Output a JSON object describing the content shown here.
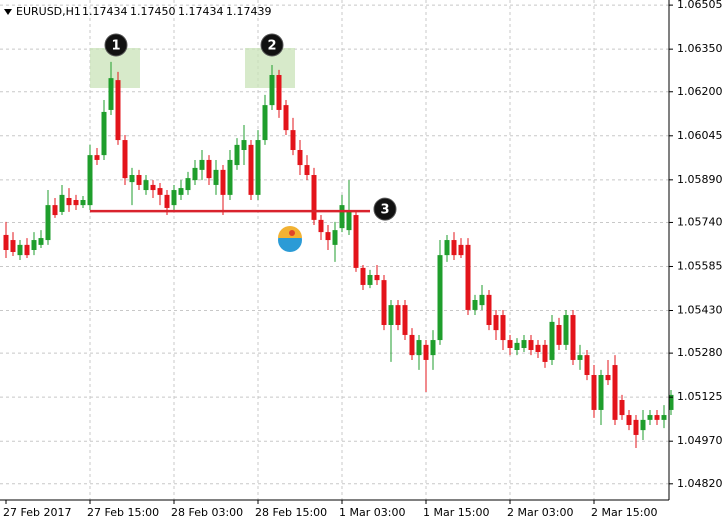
{
  "chart_data": {
    "type": "candlestick",
    "symbol": "EURUSD,H1",
    "quote": [
      1.17434,
      {
        "value": 1.1745,
        "label": "1.17450"
      },
      1.17434,
      1.17439
    ],
    "annotations": [
      "1",
      "2",
      "3"
    ],
    "level": 1.0578,
    "up_color": "#1f9e2c",
    "down_color": "#e3141b",
    "level_color": "#d9232d",
    "grid": true,
    "ylim": [
      1.04763,
      1.06523
    ],
    "yticks": [
      1.06505,
      {
        "value": 1.0635,
        "label": "1.06350"
      },
      {
        "value": 1.062,
        "label": "1.06200"
      },
      1.06045,
      {
        "value": 1.0589,
        "label": "1.05890"
      },
      {
        "value": 1.0574,
        "label": "1.05740"
      },
      1.05585,
      {
        "value": 1.0543,
        "label": "1.05430"
      },
      {
        "value": 1.0528,
        "label": "1.05280"
      },
      1.05125,
      {
        "value": 1.0497,
        "label": "1.04970"
      },
      {
        "value": 1.0482,
        "label": "1.04820"
      }
    ],
    "categories": [
      "27 Feb 2017",
      null,
      null,
      null,
      null,
      null,
      null,
      null,
      null,
      null,
      null,
      null,
      "27 Feb 15:00",
      null,
      null,
      null,
      null,
      null,
      null,
      null,
      null,
      null,
      null,
      null,
      "28 Feb 03:00",
      null,
      null,
      null,
      null,
      null,
      null,
      null,
      null,
      null,
      null,
      null,
      "28 Feb 15:00",
      null,
      null,
      null,
      null,
      null,
      null,
      null,
      null,
      null,
      null,
      null,
      "1 Mar 03:00",
      null,
      null,
      null,
      null,
      null,
      null,
      null,
      null,
      null,
      null,
      null,
      "1 Mar 15:00",
      null,
      null,
      null,
      null,
      null,
      null,
      null,
      null,
      null,
      null,
      null,
      "2 Mar 03:00",
      null,
      null,
      null,
      null,
      null,
      null,
      null,
      null,
      null,
      null,
      null,
      "2 Mar 15:00",
      null,
      null,
      null,
      null,
      null,
      null,
      null,
      null,
      null,
      null,
      null
    ],
    "open": [
      1.05696,
      1.05678,
      1.05625,
      1.05661,
      1.05643,
      1.05661,
      1.05678,
      1.05801,
      1.05777,
      1.05826,
      1.05819,
      1.05801,
      1.05801,
      1.05977,
      1.05977,
      1.06136,
      1.06241,
      1.0603,
      1.05882,
      1.05907,
      1.05854,
      1.05872,
      1.05861,
      1.05837,
      1.05801,
      1.05837,
      1.05854,
      1.05889,
      1.05925,
      1.0596,
      1.05872,
      1.05925,
      1.05837,
      1.05942,
      1.05995,
      1.06013,
      1.05837,
      1.0603,
      1.06153,
      1.06259,
      1.06153,
      1.06065,
      1.05995,
      1.05942,
      1.05907,
      1.05749,
      1.05706,
      1.05661,
      1.0572,
      1.05713,
      1.05766,
      1.0558,
      1.0552,
      1.05555,
      1.05537,
      1.05379,
      1.05449,
      1.05449,
      1.05344,
      1.05273,
      1.05309,
      1.05273,
      1.05326,
      1.05625,
      1.05678,
      1.05661,
      1.05661,
      1.05432,
      1.05449,
      1.05485,
      1.05414,
      1.05414,
      1.05326,
      1.05291,
      1.05298,
      1.05326,
      1.05309,
      1.05309,
      1.05256,
      1.05379,
      1.05309,
      1.05414,
      1.05256,
      1.05273,
      1.05203,
      1.0508,
      1.05203,
      1.05238,
      1.05115,
      1.05062,
      1.05045,
      1.05009,
      1.05045,
      1.05062,
      1.05045,
      1.0508
    ],
    "high": [
      1.05742,
      1.05706,
      1.05678,
      1.05685,
      1.05706,
      1.05713,
      1.05854,
      1.05826,
      1.05872,
      1.05861,
      1.05837,
      1.05833,
      1.06013,
      1.06002,
      1.06171,
      1.06305,
      1.0627,
      1.06048,
      1.05932,
      1.05925,
      1.05907,
      1.05889,
      1.05879,
      1.05854,
      1.05872,
      1.05889,
      1.05918,
      1.0596,
      1.05995,
      1.05977,
      1.0596,
      1.05942,
      1.05995,
      1.06037,
      1.06083,
      1.0603,
      1.06065,
      1.06189,
      1.06294,
      1.06277,
      1.06171,
      1.06108,
      1.0603,
      1.05977,
      1.05932,
      1.05766,
      1.05731,
      1.05742,
      1.05837,
      1.05889,
      1.05784,
      1.0559,
      1.05573,
      1.0559,
      1.05555,
      1.05467,
      1.05467,
      1.05467,
      1.05368,
      1.05344,
      1.05326,
      1.05361,
      1.05678,
      1.05696,
      1.05706,
      1.05685,
      1.05685,
      1.05485,
      1.0552,
      1.05502,
      1.05432,
      1.05432,
      1.05344,
      1.05333,
      1.05344,
      1.05344,
      1.05326,
      1.05326,
      1.05414,
      1.05404,
      1.05432,
      1.05432,
      1.05309,
      1.05291,
      1.05238,
      1.05221,
      1.05256,
      1.05273,
      1.05133,
      1.0508,
      1.05062,
      1.0508,
      1.0508,
      1.0508,
      1.05097,
      1.0515
    ],
    "low": [
      1.05615,
      1.05622,
      1.05608,
      1.05615,
      1.05625,
      1.0565,
      1.05661,
      1.05756,
      1.05766,
      1.05777,
      1.05784,
      1.05791,
      1.05784,
      1.05942,
      1.0596,
      1.06118,
      1.06013,
      1.05872,
      1.05801,
      1.05854,
      1.05837,
      1.05826,
      1.05801,
      1.05766,
      1.05777,
      1.05819,
      1.05837,
      1.05872,
      1.05889,
      1.05872,
      1.05837,
      1.05766,
      1.05819,
      1.05925,
      1.05942,
      1.05819,
      1.05819,
      1.06013,
      1.06136,
      1.06108,
      1.06048,
      1.05977,
      1.05907,
      1.05889,
      1.05731,
      1.05678,
      1.05643,
      1.05601,
      1.05706,
      1.05696,
      1.05566,
      1.05502,
      1.05509,
      1.0552,
      1.05361,
      1.05249,
      1.05361,
      1.05326,
      1.05256,
      1.05221,
      1.05143,
      1.05221,
      1.05309,
      1.05601,
      1.05608,
      1.05615,
      1.05414,
      1.05414,
      1.05432,
      1.05361,
      1.05326,
      1.05291,
      1.05273,
      1.05273,
      1.05284,
      1.05273,
      1.05263,
      1.05228,
      1.05238,
      1.05291,
      1.05291,
      1.05238,
      1.05221,
      1.05185,
      1.05052,
      1.05027,
      1.05168,
      1.05027,
      1.05045,
      1.05009,
      1.04946,
      1.04974,
      1.05027,
      1.05027,
      1.05016,
      1.05062
    ],
    "close": [
      1.05643,
      1.05636,
      1.05661,
      1.05625,
      1.05678,
      1.05685,
      1.05801,
      1.05766,
      1.05837,
      1.05801,
      1.05801,
      1.05819,
      1.05977,
      1.0596,
      1.06129,
      1.06248,
      1.0603,
      1.05896,
      1.05907,
      1.05872,
      1.05889,
      1.05854,
      1.05837,
      1.05791,
      1.05854,
      1.05861,
      1.05896,
      1.05932,
      1.0596,
      1.05896,
      1.05925,
      1.05837,
      1.0596,
      1.06013,
      1.0603,
      1.05837,
      1.0603,
      1.06153,
      1.06259,
      1.06136,
      1.06065,
      1.05995,
      1.05942,
      1.05907,
      1.05749,
      1.05706,
      1.05678,
      1.05713,
      1.05801,
      1.05777,
      1.0558,
      1.0552,
      1.05555,
      1.05537,
      1.05379,
      1.05449,
      1.05379,
      1.05344,
      1.05273,
      1.05326,
      1.05256,
      1.05326,
      1.05625,
      1.05678,
      1.05625,
      1.05625,
      1.05432,
      1.05467,
      1.05485,
      1.05379,
      1.05361,
      1.05326,
      1.05298,
      1.05316,
      1.05326,
      1.05291,
      1.05284,
      1.05249,
      1.0539,
      1.05309,
      1.05414,
      1.05256,
      1.05273,
      1.05203,
      1.0508,
      1.05203,
      1.05185,
      1.05045,
      1.05062,
      1.05027,
      1.04992,
      1.05045,
      1.05062,
      1.05045,
      1.05062,
      1.05133
    ]
  }
}
